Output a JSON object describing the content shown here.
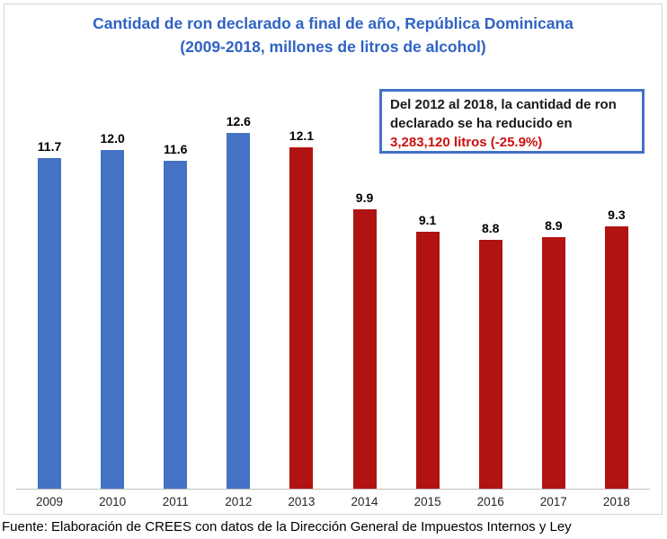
{
  "title": {
    "line1": "Cantidad de ron declarado a final de año, República Dominicana",
    "line2": "(2009-2018, millones de litros de alcohol)"
  },
  "annotation": {
    "text_black": "Del 2012 al 2018, la cantidad de ron declarado se ha reducido en ",
    "text_red": "3,283,120 litros (-25.9%)"
  },
  "source": "Fuente: Elaboración de CREES con datos de la Dirección General de Impuestos Internos y Ley",
  "colors": {
    "blue_bar": "#4472C4",
    "red_bar": "#B01312",
    "title_text": "#2F62C4",
    "annotation_border": "#4472C4",
    "annotation_red_text": "#CC1111",
    "axis_line": "#BFBFBF",
    "frame_border": "#D6D6D6"
  },
  "chart_data": {
    "type": "bar",
    "title": "Cantidad de ron declarado a final de año, República Dominicana (2009-2018, millones de litros de alcohol)",
    "categories": [
      "2009",
      "2010",
      "2011",
      "2012",
      "2013",
      "2014",
      "2015",
      "2016",
      "2017",
      "2018"
    ],
    "values": [
      11.7,
      12.0,
      11.6,
      12.6,
      12.1,
      9.9,
      9.1,
      8.8,
      8.9,
      9.3
    ],
    "labels": [
      "11.7",
      "12.0",
      "11.6",
      "12.6",
      "12.1",
      "9.9",
      "9.1",
      "8.8",
      "8.9",
      "9.3"
    ],
    "bar_color_keys": [
      "blue",
      "blue",
      "blue",
      "blue",
      "red",
      "red",
      "red",
      "red",
      "red",
      "red"
    ],
    "xlabel": "",
    "ylabel": "",
    "ylim": [
      0,
      14
    ],
    "grid": false,
    "data_labels": true,
    "legend": false,
    "annotation": "Del 2012 al 2018, la cantidad de ron declarado se ha reducido en 3,283,120 litros (-25.9%)"
  }
}
